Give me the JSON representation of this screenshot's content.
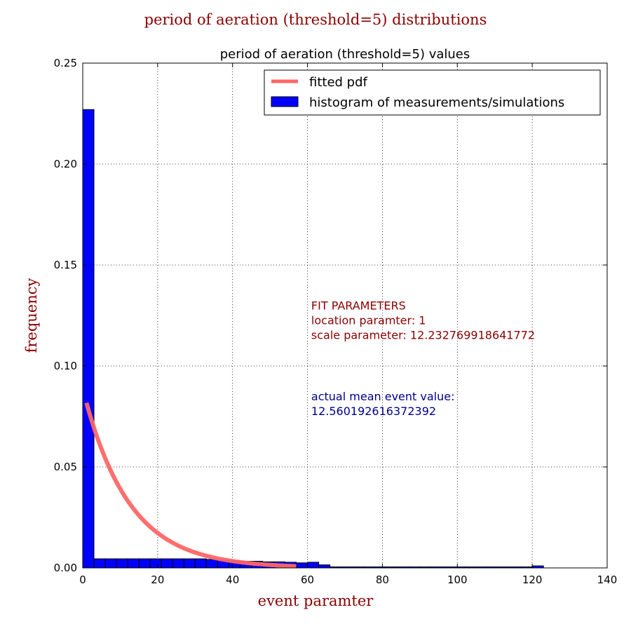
{
  "figure": {
    "suptitle": "period of aeration (threshold=5) distributions"
  },
  "chart_data": {
    "type": "bar",
    "title": "period of aeration (threshold=5) values",
    "xlabel": "event paramter",
    "ylabel": "frequency",
    "xlim": [
      0,
      140
    ],
    "ylim": [
      0,
      0.25
    ],
    "xticks": [
      0,
      20,
      40,
      60,
      80,
      100,
      120,
      140
    ],
    "yticks": [
      0.0,
      0.05,
      0.1,
      0.15,
      0.2,
      0.25
    ],
    "xtick_labels": [
      "0",
      "20",
      "40",
      "60",
      "80",
      "100",
      "120",
      "140"
    ],
    "ytick_labels": [
      "0.00",
      "0.05",
      "0.10",
      "0.15",
      "0.20",
      "0.25"
    ],
    "grid": true,
    "legend_position": "top-right",
    "series": [
      {
        "name": "histogram of measurements/simulations",
        "kind": "histogram",
        "color": "#0000ff",
        "bins": [
          [
            0.0,
            3.0,
            0.227
          ],
          [
            3.0,
            6.0,
            0.0045
          ],
          [
            6.0,
            9.0,
            0.0045
          ],
          [
            9.0,
            12.0,
            0.0045
          ],
          [
            12.0,
            15.0,
            0.0045
          ],
          [
            15.0,
            18.0,
            0.0045
          ],
          [
            18.0,
            21.0,
            0.0045
          ],
          [
            21.0,
            24.0,
            0.0045
          ],
          [
            24.0,
            27.0,
            0.0045
          ],
          [
            27.0,
            30.0,
            0.0045
          ],
          [
            30.0,
            33.0,
            0.0045
          ],
          [
            33.0,
            36.0,
            0.0042
          ],
          [
            36.0,
            39.0,
            0.004
          ],
          [
            39.0,
            42.0,
            0.0035
          ],
          [
            42.0,
            45.0,
            0.0033
          ],
          [
            45.0,
            48.0,
            0.0033
          ],
          [
            48.0,
            51.0,
            0.003
          ],
          [
            51.0,
            54.0,
            0.003
          ],
          [
            54.0,
            57.0,
            0.0028
          ],
          [
            57.0,
            60.0,
            0.0025
          ],
          [
            60.0,
            63.0,
            0.0028
          ],
          [
            63.0,
            66.0,
            0.0015
          ],
          [
            66.0,
            69.0,
            0.0005
          ],
          [
            69.0,
            72.0,
            0.0005
          ],
          [
            72.0,
            75.0,
            0.0005
          ],
          [
            75.0,
            78.0,
            0.0005
          ],
          [
            78.0,
            81.0,
            0.0005
          ],
          [
            81.0,
            84.0,
            0.0005
          ],
          [
            84.0,
            87.0,
            0.0005
          ],
          [
            87.0,
            90.0,
            0.0005
          ],
          [
            90.0,
            93.0,
            0.0005
          ],
          [
            93.0,
            96.0,
            0.0005
          ],
          [
            96.0,
            99.0,
            0.0005
          ],
          [
            99.0,
            102.0,
            0.0005
          ],
          [
            102.0,
            105.0,
            0.0005
          ],
          [
            105.0,
            108.0,
            0.0005
          ],
          [
            108.0,
            111.0,
            0.0005
          ],
          [
            111.0,
            114.0,
            0.0005
          ],
          [
            114.0,
            117.0,
            0.0005
          ],
          [
            117.0,
            120.0,
            0.0005
          ],
          [
            120.0,
            123.0,
            0.001
          ]
        ]
      },
      {
        "name": "fitted pdf",
        "kind": "line",
        "color": "#ff6666",
        "distribution": "exponential",
        "location": 1,
        "scale": 12.232769918641772,
        "x_range": [
          1,
          57
        ]
      }
    ],
    "annotations": [
      {
        "id": "fit-parameters",
        "lines": [
          "FIT PARAMETERS",
          "location paramter: 1",
          "scale parameter: 12.232769918641772"
        ],
        "color": "#8b0000",
        "x": 61,
        "y": 0.128
      },
      {
        "id": "actual-mean",
        "lines": [
          "actual mean event value:",
          "12.560192616372392"
        ],
        "color": "#00008b",
        "x": 61,
        "y": 0.083
      }
    ]
  }
}
